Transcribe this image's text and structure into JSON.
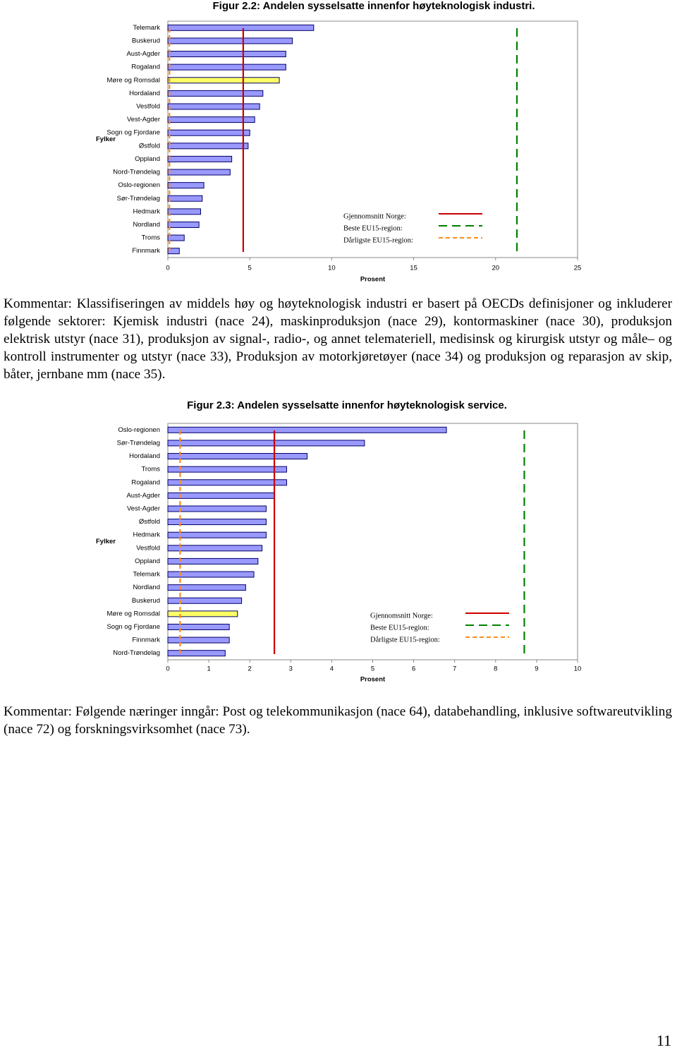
{
  "chart_data": [
    {
      "type": "bar",
      "orientation": "horizontal",
      "title": "Figur 2.2: Andelen sysselsatte innenfor høyteknologisk industri.",
      "y_label": "Fylker",
      "x_label": "Prosent",
      "categories": [
        "Telemark",
        "Buskerud",
        "Aust-Agder",
        "Rogaland",
        "Møre og Romsdal",
        "Hordaland",
        "Vestfold",
        "Vest-Agder",
        "Sogn og Fjordane",
        "Østfold",
        "Oppland",
        "Nord-Trøndelag",
        "Oslo-regionen",
        "Sør-Trøndelag",
        "Hedmark",
        "Nordland",
        "Troms",
        "Finnmark"
      ],
      "values": [
        8.9,
        7.6,
        7.2,
        7.2,
        6.8,
        5.8,
        5.6,
        5.3,
        5.0,
        4.9,
        3.9,
        3.8,
        2.2,
        2.1,
        2.0,
        1.9,
        1.0,
        0.7
      ],
      "colors": [
        "#9999ff",
        "#9999ff",
        "#9999ff",
        "#9999ff",
        "#ffff66",
        "#9999ff",
        "#9999ff",
        "#9999ff",
        "#9999ff",
        "#9999ff",
        "#9999ff",
        "#9999ff",
        "#9999ff",
        "#9999ff",
        "#9999ff",
        "#9999ff",
        "#9999ff",
        "#9999ff"
      ],
      "xlim": [
        0,
        25
      ],
      "xticks": [
        0,
        5,
        10,
        15,
        20,
        25
      ],
      "reference_lines": [
        {
          "name": "Gjennomsnitt Norge:",
          "value": 4.6,
          "color": "#cc0000",
          "dash": "solid"
        },
        {
          "name": "Beste EU15-region:",
          "value": 21.3,
          "color": "#008000",
          "dash": "long"
        },
        {
          "name": "Dårligste EU15-region:",
          "value": 0.1,
          "color": "#ff8c1a",
          "dash": "short"
        }
      ]
    },
    {
      "type": "bar",
      "orientation": "horizontal",
      "title": "Figur 2.3: Andelen sysselsatte innenfor høyteknologisk service.",
      "y_label": "Fylker",
      "x_label": "Prosent",
      "categories": [
        "Oslo-regionen",
        "Sør-Trøndelag",
        "Hordaland",
        "Troms",
        "Rogaland",
        "Aust-Agder",
        "Vest-Agder",
        "Østfold",
        "Hedmark",
        "Vestfold",
        "Oppland",
        "Telemark",
        "Nordland",
        "Buskerud",
        "Møre og Romsdal",
        "Sogn og Fjordane",
        "Finnmark",
        "Nord-Trøndelag"
      ],
      "values": [
        6.8,
        4.8,
        3.4,
        2.9,
        2.9,
        2.6,
        2.4,
        2.4,
        2.4,
        2.3,
        2.2,
        2.1,
        1.9,
        1.8,
        1.7,
        1.5,
        1.5,
        1.4
      ],
      "colors": [
        "#9999ff",
        "#9999ff",
        "#9999ff",
        "#9999ff",
        "#9999ff",
        "#9999ff",
        "#9999ff",
        "#9999ff",
        "#9999ff",
        "#9999ff",
        "#9999ff",
        "#9999ff",
        "#9999ff",
        "#9999ff",
        "#ffff66",
        "#9999ff",
        "#9999ff",
        "#9999ff"
      ],
      "xlim": [
        0,
        10
      ],
      "xticks": [
        0,
        1,
        2,
        3,
        4,
        5,
        6,
        7,
        8,
        9,
        10
      ],
      "reference_lines": [
        {
          "name": "Gjennomsnitt Norge:",
          "value": 2.6,
          "color": "#cc0000",
          "dash": "solid"
        },
        {
          "name": "Beste EU15-region:",
          "value": 8.7,
          "color": "#008000",
          "dash": "long"
        },
        {
          "name": "Dårligste EU15-region:",
          "value": 0.3,
          "color": "#ff8c1a",
          "dash": "short"
        }
      ]
    }
  ],
  "comments": [
    "Kommentar: Klassifiseringen av middels høy og høyteknologisk industri er basert på OECDs definisjoner og inkluderer følgende sektorer: Kjemisk industri (nace 24), maskinproduksjon (nace 29), kontormaskiner (nace 30), produksjon elektrisk utstyr (nace 31), produksjon av signal-, radio-, og annet telemateriell, medisinsk og kirurgisk utstyr og måle– og kontroll instrumenter og utstyr (nace 33), Produksjon av motorkjøretøyer (nace 34) og produksjon og reparasjon av skip, båter, jernbane mm (nace 35).",
    "Kommentar: Følgende næringer inngår: Post og telekommunikasjon (nace 64), databehandling, inklusive softwareutvikling (nace 72) og forskningsvirksomhet (nace 73)."
  ],
  "page_number": "11"
}
